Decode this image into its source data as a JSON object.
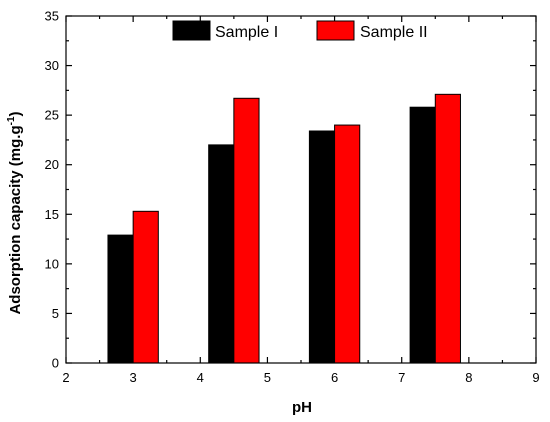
{
  "chart_data": {
    "type": "bar",
    "title": "",
    "xlabel": "pH",
    "ylabel": "Adsorption capacity (mg.g",
    "ylabel_superscript": "-1",
    "ylabel_close": ")",
    "xlim": [
      2,
      9
    ],
    "ylim": [
      0,
      35
    ],
    "xticks": [
      "2",
      "3",
      "4",
      "5",
      "6",
      "7",
      "8",
      "9"
    ],
    "yticks": [
      "0",
      "5",
      "10",
      "15",
      "20",
      "25",
      "30",
      "35"
    ],
    "grid": false,
    "legend_position": "top",
    "x": [
      3.0,
      4.5,
      6.0,
      7.5
    ],
    "series": [
      {
        "name": "Sample I",
        "color": "#000000",
        "values": [
          12.9,
          22.0,
          23.4,
          25.8
        ]
      },
      {
        "name": "Sample II",
        "color": "#ff0000",
        "values": [
          15.3,
          26.7,
          24.0,
          27.1
        ]
      }
    ]
  }
}
